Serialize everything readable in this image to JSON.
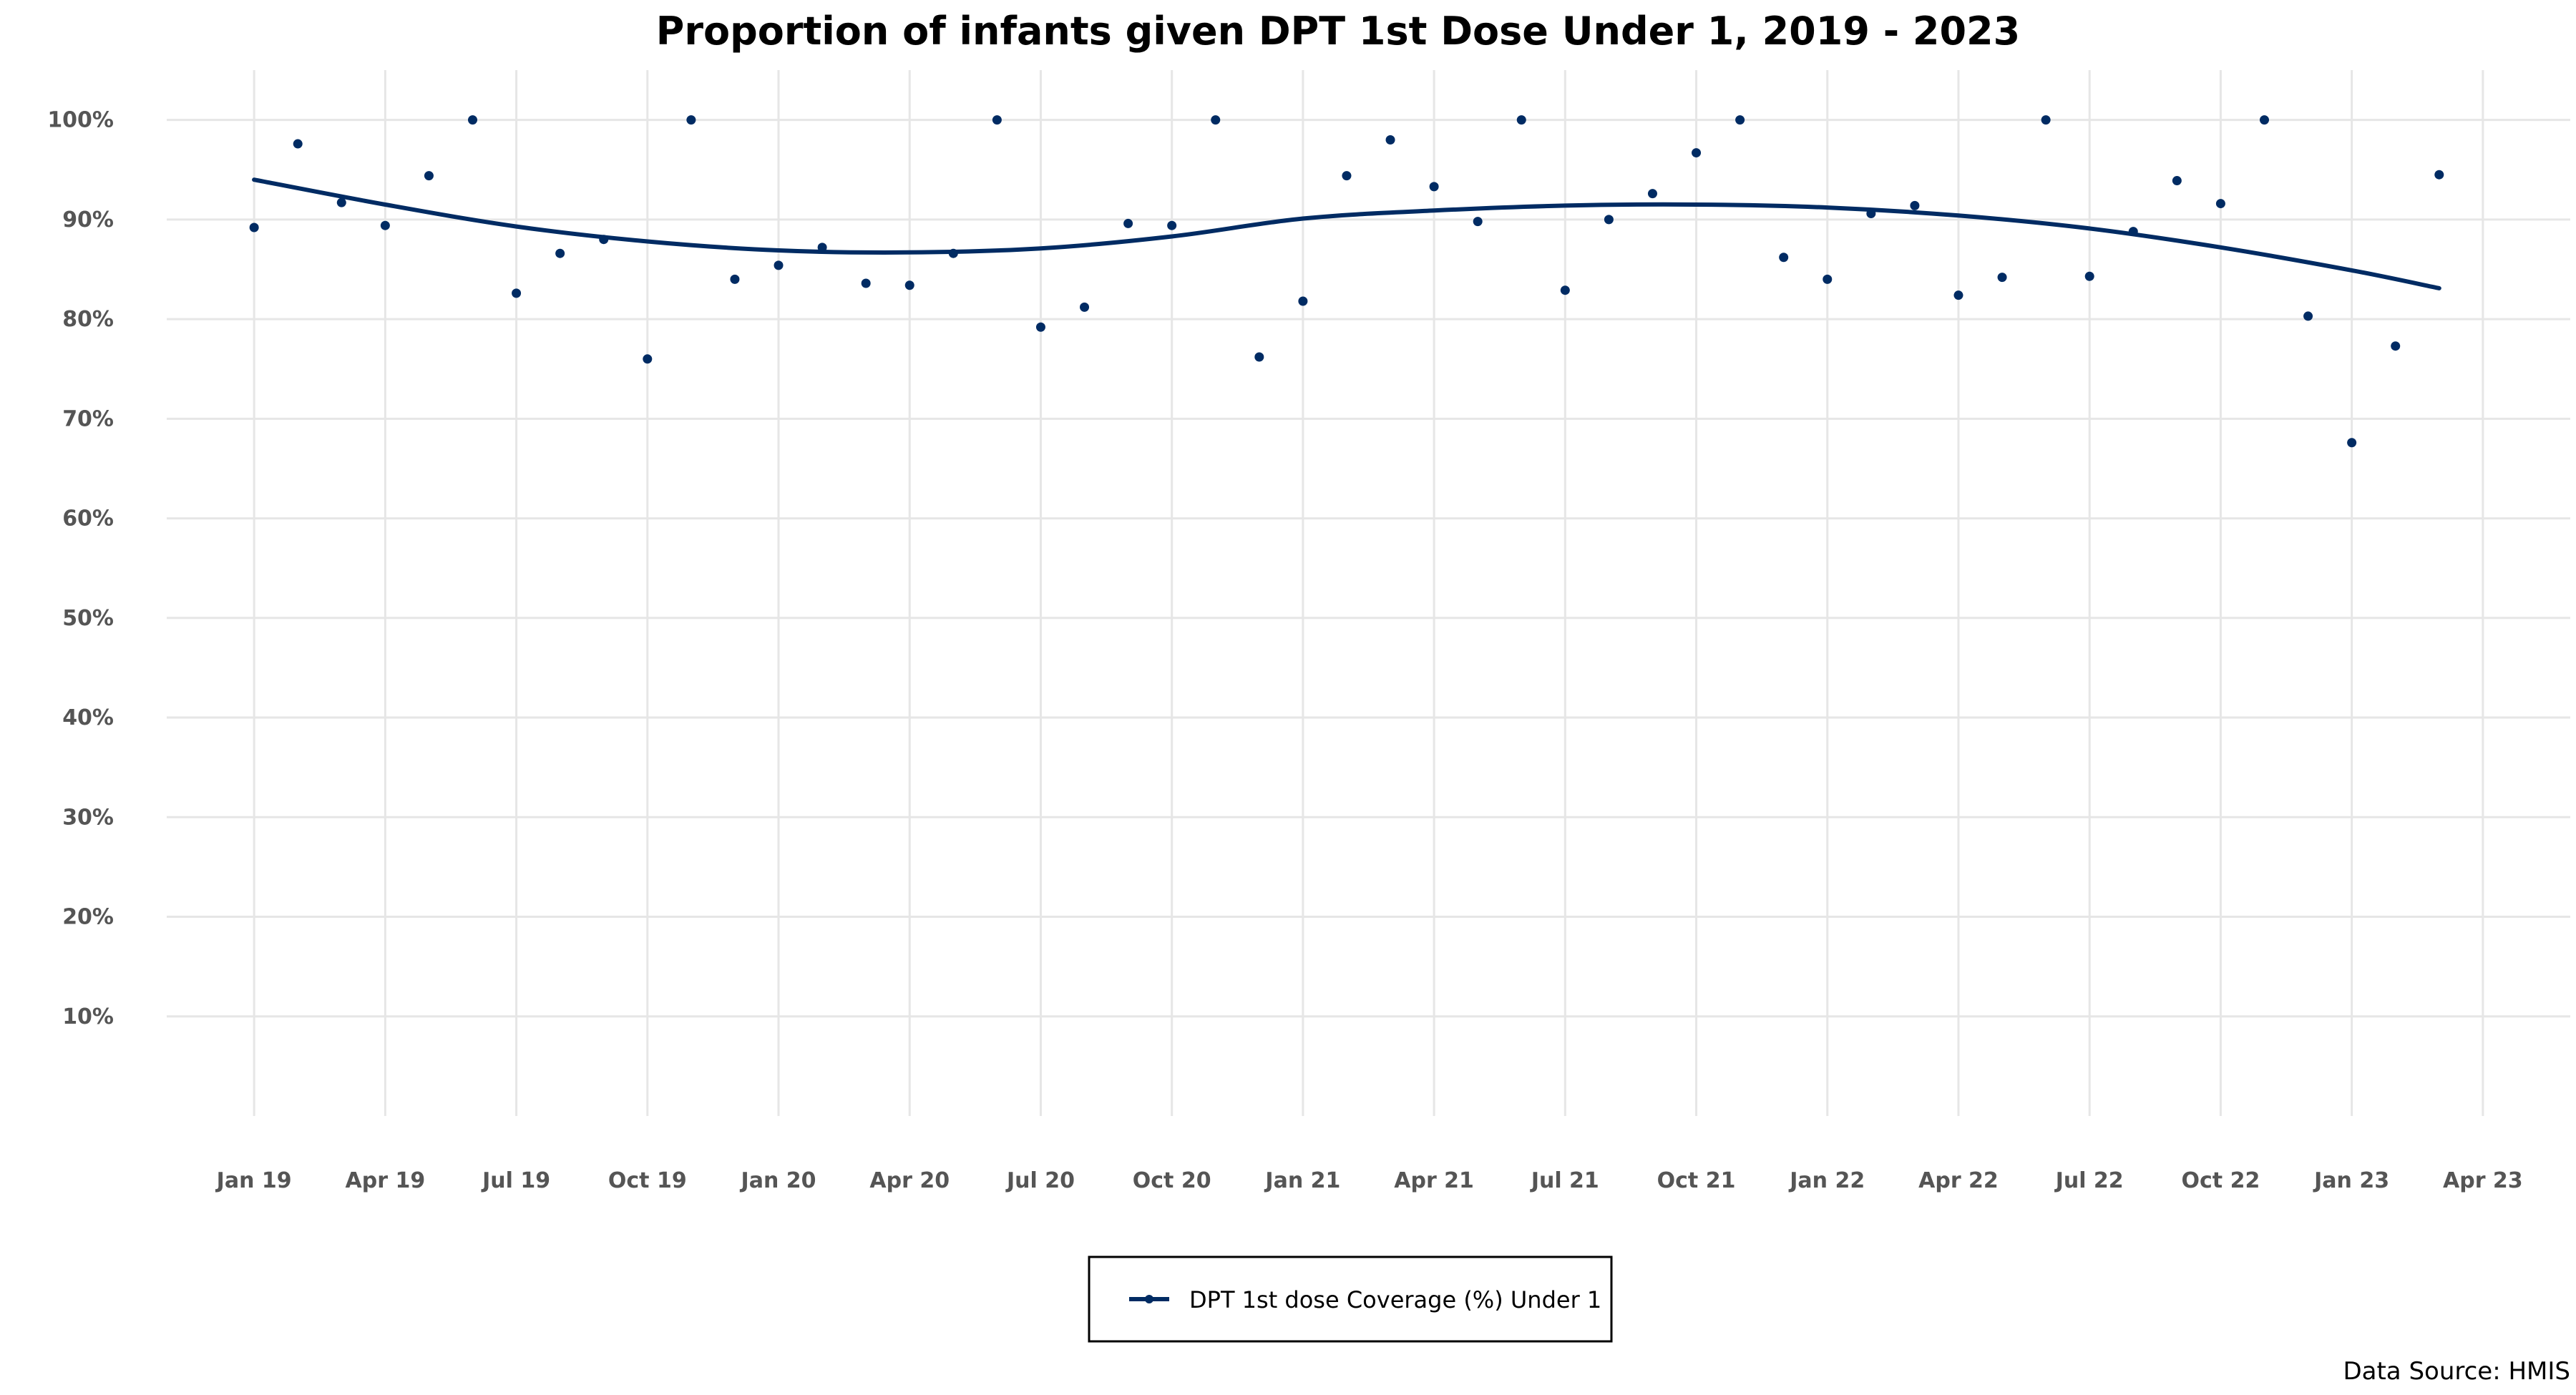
{
  "colors": {
    "series": "#002b63",
    "grid": "#e6e6e6",
    "tick_text": "#555555"
  },
  "chart_data": {
    "type": "scatter",
    "title": "Proportion of infants given DPT 1st Dose Under 1, 2019 - 2023",
    "xlabel": "",
    "ylabel": "",
    "caption": "Data Source: HMIS",
    "x_tick_labels": [
      "Jan 19",
      "Apr 19",
      "Jul 19",
      "Oct 19",
      "Jan 20",
      "Apr 20",
      "Jul 20",
      "Oct 20",
      "Jan 21",
      "Apr 21",
      "Jul 21",
      "Oct 21",
      "Jan 22",
      "Apr 22",
      "Jul 22",
      "Oct 22",
      "Jan 23",
      "Apr 23"
    ],
    "y_tick_labels": [
      "10%",
      "20%",
      "30%",
      "40%",
      "50%",
      "60%",
      "70%",
      "80%",
      "90%",
      "100%"
    ],
    "x_range": [
      "2018-11",
      "2023-06"
    ],
    "ylim": [
      0,
      105
    ],
    "grid": true,
    "legend_position": "bottom",
    "series": [
      {
        "name": "DPT 1st dose Coverage (%) Under 1",
        "color": "#002b63",
        "points": [
          {
            "x": "2019-01",
            "y": 89.2
          },
          {
            "x": "2019-02",
            "y": 97.6
          },
          {
            "x": "2019-03",
            "y": 91.7
          },
          {
            "x": "2019-04",
            "y": 89.4
          },
          {
            "x": "2019-05",
            "y": 94.4
          },
          {
            "x": "2019-06",
            "y": 100
          },
          {
            "x": "2019-07",
            "y": 82.6
          },
          {
            "x": "2019-08",
            "y": 86.6
          },
          {
            "x": "2019-09",
            "y": 88.0
          },
          {
            "x": "2019-10",
            "y": 76.0
          },
          {
            "x": "2019-11",
            "y": 100
          },
          {
            "x": "2019-12",
            "y": 84.0
          },
          {
            "x": "2020-01",
            "y": 85.4
          },
          {
            "x": "2020-02",
            "y": 87.2
          },
          {
            "x": "2020-03",
            "y": 83.6
          },
          {
            "x": "2020-04",
            "y": 83.4
          },
          {
            "x": "2020-05",
            "y": 86.6
          },
          {
            "x": "2020-06",
            "y": 100
          },
          {
            "x": "2020-07",
            "y": 79.2
          },
          {
            "x": "2020-08",
            "y": 81.2
          },
          {
            "x": "2020-09",
            "y": 89.6
          },
          {
            "x": "2020-10",
            "y": 89.4
          },
          {
            "x": "2020-11",
            "y": 100
          },
          {
            "x": "2020-12",
            "y": 76.2
          },
          {
            "x": "2021-01",
            "y": 81.8
          },
          {
            "x": "2021-02",
            "y": 94.4
          },
          {
            "x": "2021-03",
            "y": 98.0
          },
          {
            "x": "2021-04",
            "y": 93.3
          },
          {
            "x": "2021-05",
            "y": 89.8
          },
          {
            "x": "2021-06",
            "y": 100
          },
          {
            "x": "2021-07",
            "y": 82.9
          },
          {
            "x": "2021-08",
            "y": 90.0
          },
          {
            "x": "2021-09",
            "y": 92.6
          },
          {
            "x": "2021-10",
            "y": 96.7
          },
          {
            "x": "2021-11",
            "y": 100
          },
          {
            "x": "2021-12",
            "y": 86.2
          },
          {
            "x": "2022-01",
            "y": 84.0
          },
          {
            "x": "2022-02",
            "y": 90.6
          },
          {
            "x": "2022-03",
            "y": 91.4
          },
          {
            "x": "2022-04",
            "y": 82.4
          },
          {
            "x": "2022-05",
            "y": 84.2
          },
          {
            "x": "2022-06",
            "y": 100
          },
          {
            "x": "2022-07",
            "y": 84.3
          },
          {
            "x": "2022-08",
            "y": 88.8
          },
          {
            "x": "2022-09",
            "y": 93.9
          },
          {
            "x": "2022-10",
            "y": 91.6
          },
          {
            "x": "2022-11",
            "y": 100
          },
          {
            "x": "2022-12",
            "y": 80.3
          },
          {
            "x": "2023-01",
            "y": 67.6
          },
          {
            "x": "2023-02",
            "y": 77.3
          },
          {
            "x": "2023-03",
            "y": 94.5
          }
        ],
        "smooth_trend": [
          {
            "x": "2019-01",
            "y": 94.0
          },
          {
            "x": "2019-04",
            "y": 91.5
          },
          {
            "x": "2019-07",
            "y": 89.3
          },
          {
            "x": "2019-10",
            "y": 87.8
          },
          {
            "x": "2020-01",
            "y": 86.9
          },
          {
            "x": "2020-04",
            "y": 86.7
          },
          {
            "x": "2020-07",
            "y": 87.1
          },
          {
            "x": "2020-10",
            "y": 88.3
          },
          {
            "x": "2021-01",
            "y": 90.1
          },
          {
            "x": "2021-04",
            "y": 90.9
          },
          {
            "x": "2021-07",
            "y": 91.4
          },
          {
            "x": "2021-10",
            "y": 91.5
          },
          {
            "x": "2022-01",
            "y": 91.2
          },
          {
            "x": "2022-04",
            "y": 90.4
          },
          {
            "x": "2022-07",
            "y": 89.1
          },
          {
            "x": "2022-10",
            "y": 87.2
          },
          {
            "x": "2023-01",
            "y": 84.9
          },
          {
            "x": "2023-03",
            "y": 83.1
          }
        ]
      }
    ]
  }
}
